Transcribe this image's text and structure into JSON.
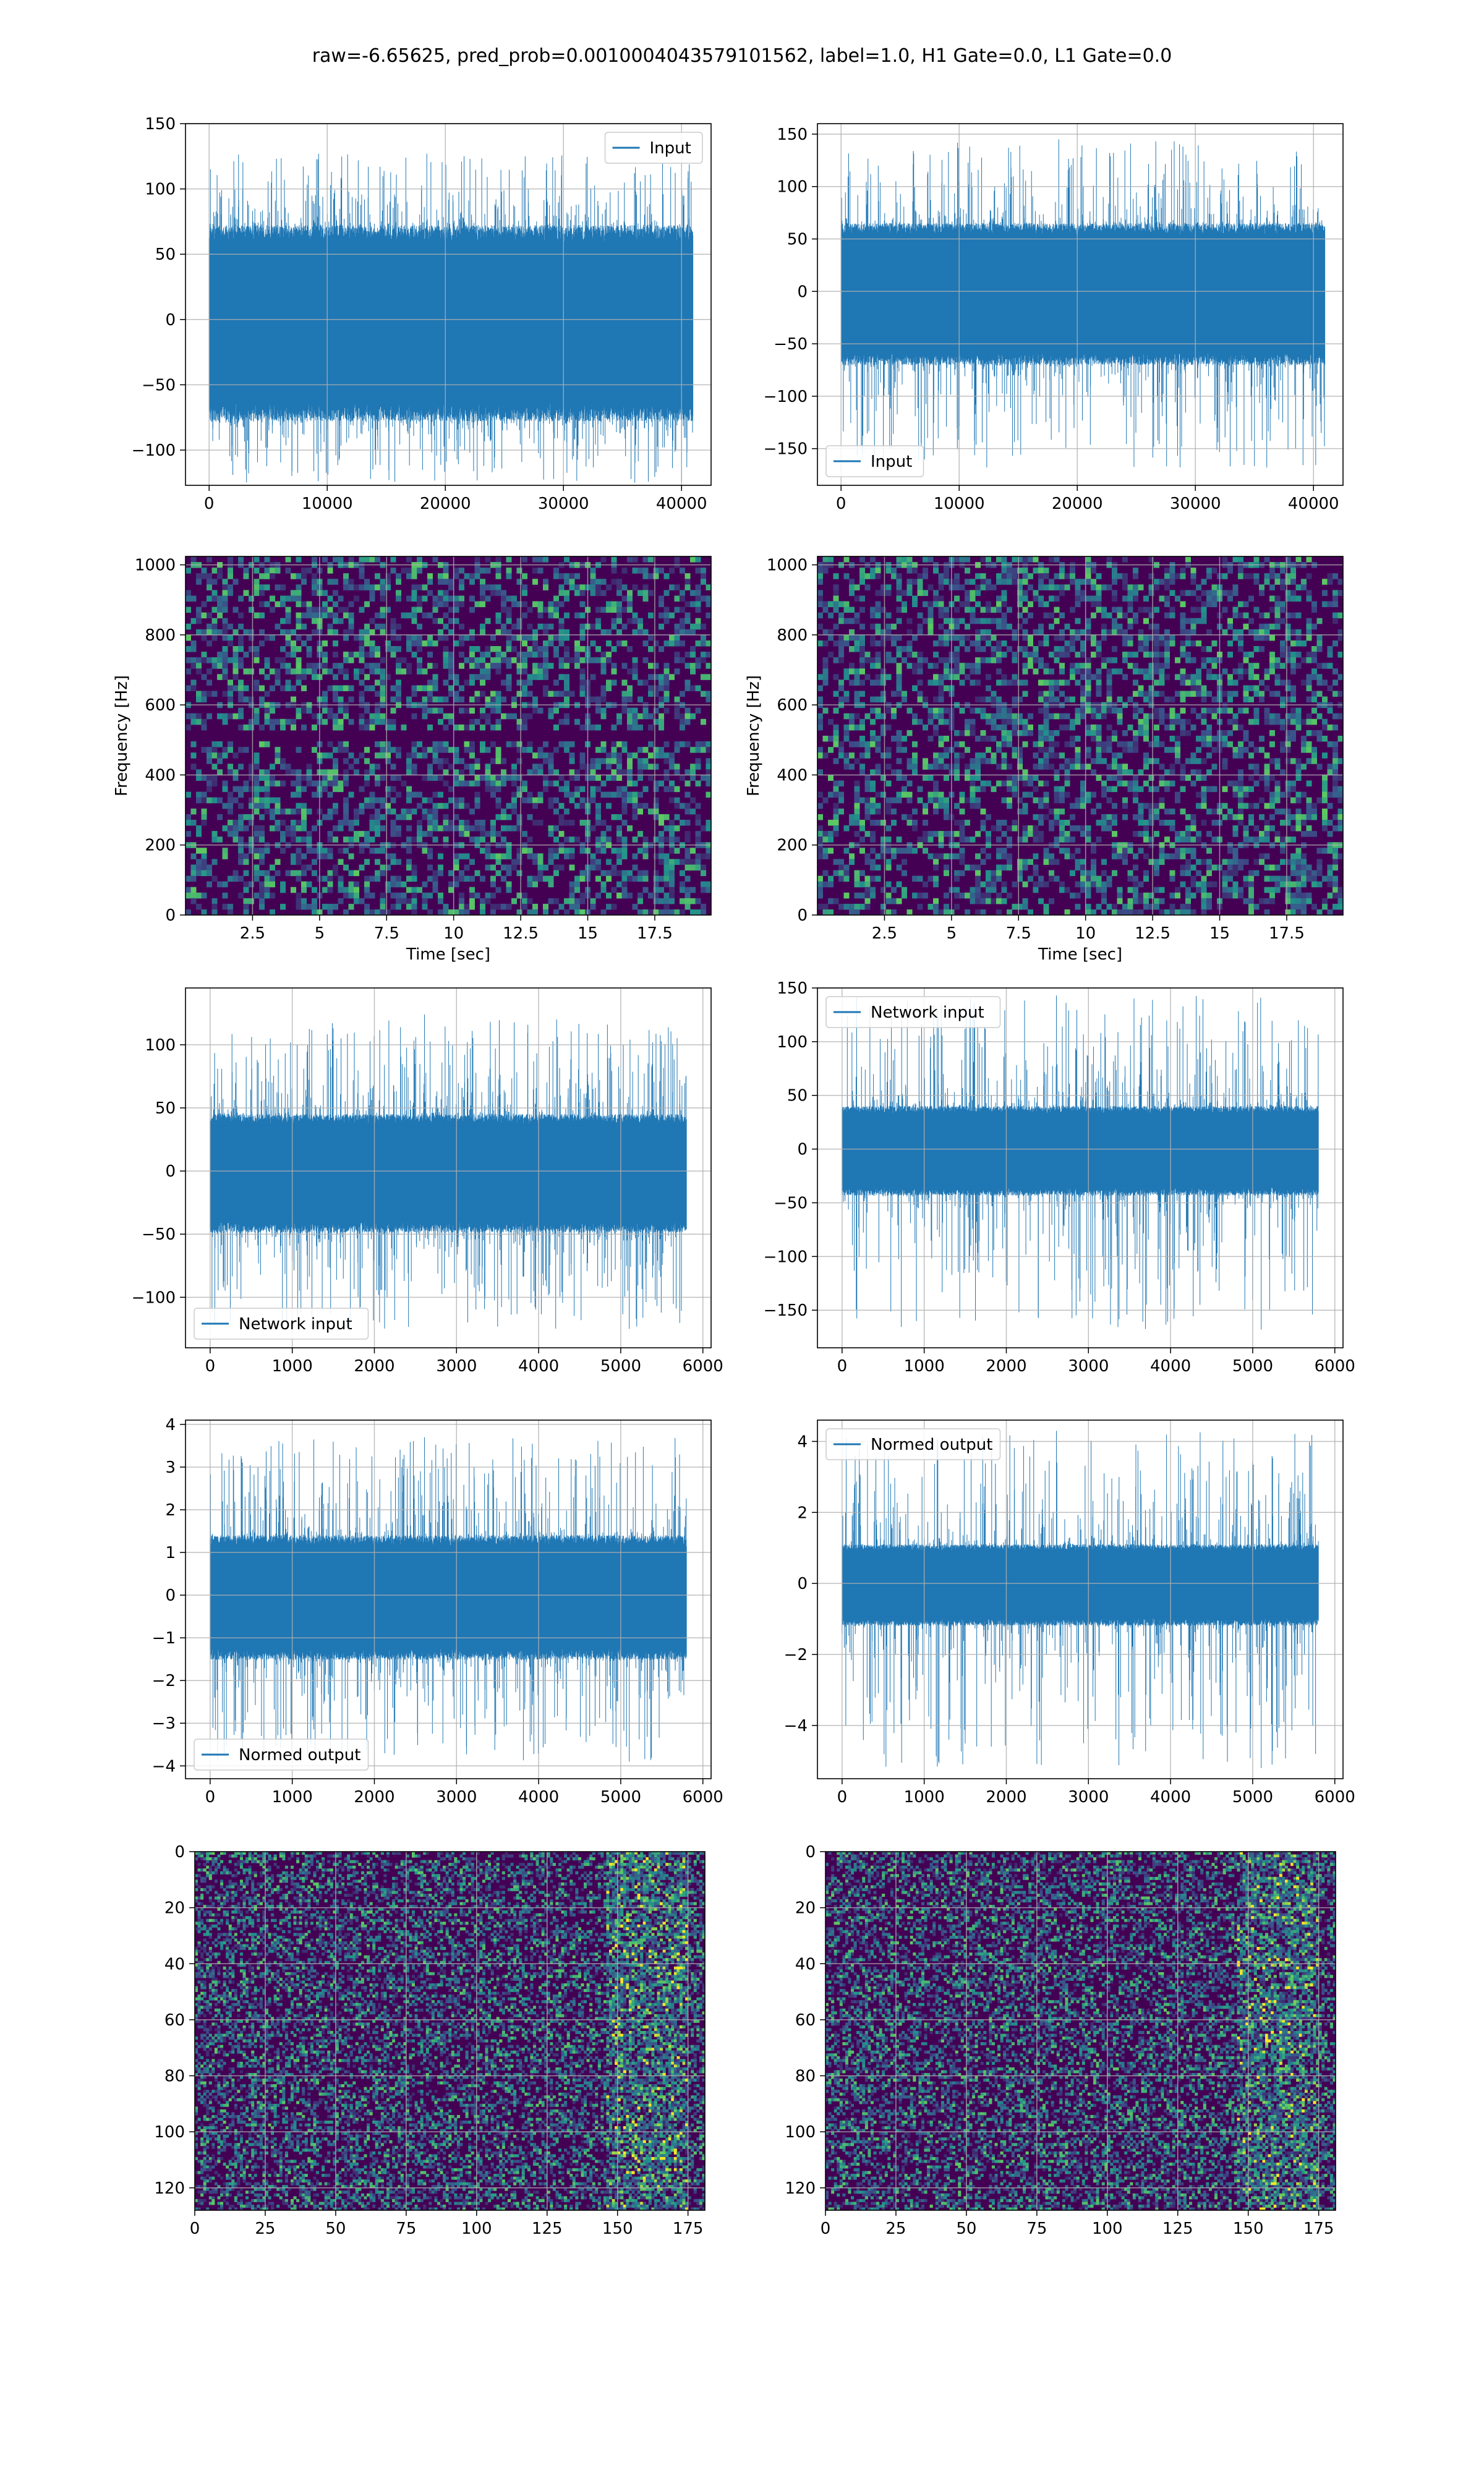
{
  "figure": {
    "suptitle": "raw=-6.65625, pred_prob=0.0010004043579101562, label=1.0, H1 Gate=0.0, L1 Gate=0.0"
  },
  "colors": {
    "line": "#1f77b4",
    "grid": "#b0b0b0",
    "viridis_low": "#440154",
    "viridis_mid": "#21918c",
    "viridis_high": "#fde725"
  },
  "chart_data": [
    {
      "id": "p1",
      "type": "line",
      "series": [
        {
          "name": "Input"
        }
      ],
      "legend": "top-right",
      "grid": true,
      "xlim": [
        -2000,
        42500
      ],
      "ylim": [
        -127,
        150
      ],
      "xticks": [
        0,
        10000,
        20000,
        30000,
        40000
      ],
      "yticks": [
        -100,
        -50,
        0,
        50,
        100,
        150
      ],
      "signal": {
        "n": 40960,
        "x_end": 40960,
        "core": 72,
        "spike_max": 127,
        "spike_min": -125
      },
      "xlabel": "",
      "ylabel": ""
    },
    {
      "id": "p2",
      "type": "line",
      "series": [
        {
          "name": "Input"
        }
      ],
      "legend": "bottom-left",
      "grid": true,
      "xlim": [
        -2000,
        42500
      ],
      "ylim": [
        -185,
        160
      ],
      "xticks": [
        0,
        10000,
        20000,
        30000,
        40000
      ],
      "yticks": [
        -150,
        -100,
        -50,
        0,
        50,
        100,
        150
      ],
      "signal": {
        "n": 40960,
        "x_end": 40960,
        "core": 65,
        "spike_max": 145,
        "spike_min": -168
      },
      "xlabel": "",
      "ylabel": ""
    },
    {
      "id": "p3",
      "type": "heatmap",
      "colormap": "viridis",
      "grid": true,
      "xlim": [
        0,
        19.6
      ],
      "ylim": [
        0,
        1024
      ],
      "xticks": [
        2.5,
        5.0,
        7.5,
        10.0,
        12.5,
        15.0,
        17.5
      ],
      "yticks": [
        0,
        200,
        400,
        600,
        800,
        1000
      ],
      "xlabel": "Time [sec]",
      "ylabel": "Frequency [Hz]"
    },
    {
      "id": "p4",
      "type": "heatmap",
      "colormap": "viridis",
      "grid": true,
      "xlim": [
        0,
        19.6
      ],
      "ylim": [
        0,
        1024
      ],
      "xticks": [
        2.5,
        5.0,
        7.5,
        10.0,
        12.5,
        15.0,
        17.5
      ],
      "yticks": [
        0,
        200,
        400,
        600,
        800,
        1000
      ],
      "xlabel": "Time [sec]",
      "ylabel": "Frequency [Hz]"
    },
    {
      "id": "p5",
      "type": "line",
      "series": [
        {
          "name": "Network input"
        }
      ],
      "legend": "bottom-left",
      "grid": true,
      "xlim": [
        -300,
        6100
      ],
      "ylim": [
        -140,
        145
      ],
      "xticks": [
        0,
        1000,
        2000,
        3000,
        4000,
        5000,
        6000
      ],
      "yticks": [
        -100,
        -50,
        0,
        50,
        100
      ],
      "signal": {
        "n": 5800,
        "x_end": 5800,
        "core": 45,
        "spike_max": 124,
        "spike_min": -125
      },
      "xlabel": "",
      "ylabel": ""
    },
    {
      "id": "p6",
      "type": "line",
      "series": [
        {
          "name": "Network input"
        }
      ],
      "legend": "top-left",
      "grid": true,
      "xlim": [
        -300,
        6100
      ],
      "ylim": [
        -185,
        150
      ],
      "xticks": [
        0,
        1000,
        2000,
        3000,
        4000,
        5000,
        6000
      ],
      "yticks": [
        -150,
        -100,
        -50,
        0,
        50,
        100,
        150
      ],
      "signal": {
        "n": 5800,
        "x_end": 5800,
        "core": 40,
        "spike_max": 143,
        "spike_min": -168
      },
      "xlabel": "",
      "ylabel": ""
    },
    {
      "id": "p7",
      "type": "line",
      "series": [
        {
          "name": "Normed output"
        }
      ],
      "legend": "bottom-left",
      "grid": true,
      "xlim": [
        -300,
        6100
      ],
      "ylim": [
        -4.3,
        4.1
      ],
      "xticks": [
        0,
        1000,
        2000,
        3000,
        4000,
        5000,
        6000
      ],
      "yticks": [
        -4,
        -3,
        -2,
        -1,
        0,
        1,
        2,
        3,
        4
      ],
      "signal": {
        "n": 5800,
        "x_end": 5800,
        "core": 1.4,
        "spike_max": 3.7,
        "spike_min": -3.9
      },
      "xlabel": "",
      "ylabel": ""
    },
    {
      "id": "p8",
      "type": "line",
      "series": [
        {
          "name": "Normed output"
        }
      ],
      "legend": "top-left",
      "grid": true,
      "xlim": [
        -300,
        6100
      ],
      "ylim": [
        -5.5,
        4.6
      ],
      "xticks": [
        0,
        1000,
        2000,
        3000,
        4000,
        5000,
        6000
      ],
      "yticks": [
        -4,
        -2,
        0,
        2,
        4
      ],
      "signal": {
        "n": 5800,
        "x_end": 5800,
        "core": 1.1,
        "spike_max": 4.3,
        "spike_min": -5.2
      },
      "xlabel": "",
      "ylabel": ""
    },
    {
      "id": "p9",
      "type": "heatmap",
      "colormap": "viridis",
      "grid": true,
      "xlim": [
        0,
        181
      ],
      "ylim": [
        128,
        0
      ],
      "xticks": [
        0,
        25,
        50,
        75,
        100,
        125,
        150,
        175
      ],
      "yticks": [
        0,
        20,
        40,
        60,
        80,
        100,
        120
      ],
      "xlabel": "",
      "ylabel": ""
    },
    {
      "id": "p10",
      "type": "heatmap",
      "colormap": "viridis",
      "grid": true,
      "xlim": [
        0,
        181
      ],
      "ylim": [
        128,
        0
      ],
      "xticks": [
        0,
        25,
        50,
        75,
        100,
        125,
        150,
        175
      ],
      "yticks": [
        0,
        20,
        40,
        60,
        80,
        100,
        120
      ],
      "xlabel": "",
      "ylabel": ""
    }
  ]
}
